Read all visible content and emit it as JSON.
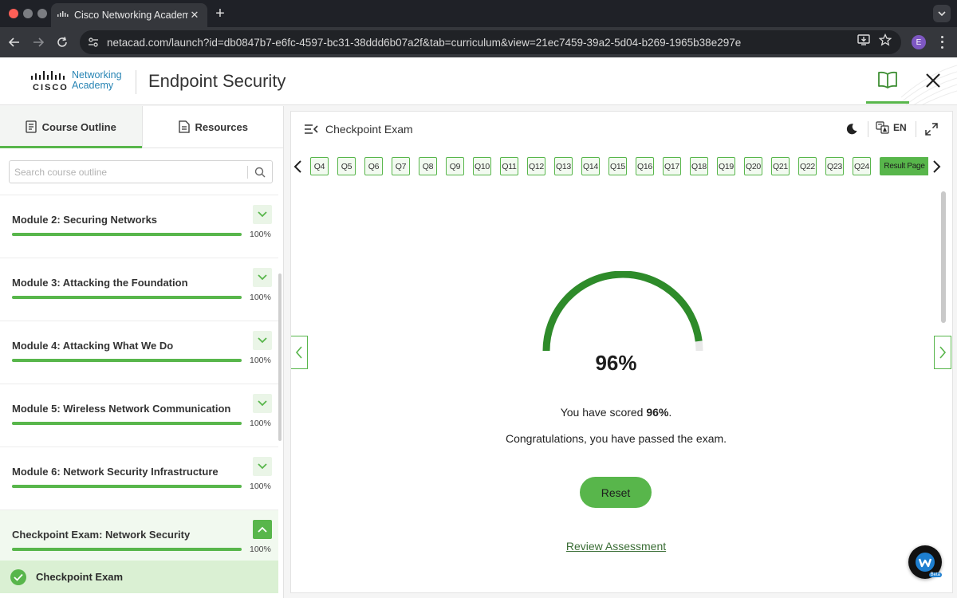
{
  "browser": {
    "tab_title": "Cisco Networking Academy: E",
    "url": "netacad.com/launch?id=db0847b7-e6fc-4597-bc31-38ddd6b07a2f&tab=curriculum&view=21ec7459-39a2-5d04-b269-1965b38e297e",
    "profile_initial": "E"
  },
  "header": {
    "logo_cisco": "CISCO",
    "logo_line1": "Networking",
    "logo_line2": "Academy",
    "course_title": "Endpoint Security"
  },
  "sidebar": {
    "tabs": [
      {
        "label": "Course Outline",
        "active": true
      },
      {
        "label": "Resources",
        "active": false
      }
    ],
    "search_placeholder": "Search course outline",
    "modules": [
      {
        "title": "Module 2: Securing Networks",
        "percent": "100%",
        "progress": 1.0,
        "expanded": false
      },
      {
        "title": "Module 3: Attacking the Foundation",
        "percent": "100%",
        "progress": 1.0,
        "expanded": false
      },
      {
        "title": "Module 4: Attacking What We Do",
        "percent": "100%",
        "progress": 1.0,
        "expanded": false
      },
      {
        "title": "Module 5: Wireless Network Communication",
        "percent": "100%",
        "progress": 1.0,
        "expanded": false
      },
      {
        "title": "Module 6: Network Security Infrastructure",
        "percent": "100%",
        "progress": 1.0,
        "expanded": false
      },
      {
        "title": "Checkpoint Exam: Network Security",
        "percent": "100%",
        "progress": 1.0,
        "expanded": true
      }
    ],
    "subitem": "Checkpoint Exam"
  },
  "main": {
    "page_title": "Checkpoint Exam",
    "language": "EN",
    "questions": [
      "Q4",
      "Q5",
      "Q6",
      "Q7",
      "Q8",
      "Q9",
      "Q10",
      "Q11",
      "Q12",
      "Q13",
      "Q14",
      "Q15",
      "Q16",
      "Q17",
      "Q18",
      "Q19",
      "Q20",
      "Q21",
      "Q22",
      "Q23",
      "Q24"
    ],
    "result_label": "Result Page",
    "score_percent": "96%",
    "score_value": 0.96,
    "score_prefix": "You have scored ",
    "score_bold": "96%",
    "score_suffix": ".",
    "congrats": "Congratulations, you have passed the exam.",
    "reset_label": "Reset",
    "review_label": "Review Assessment",
    "webex_badge": "Beta"
  },
  "colors": {
    "accent": "#58b64b",
    "gauge": "#2e8b2a",
    "gauge_track": "#e8e8e8"
  }
}
